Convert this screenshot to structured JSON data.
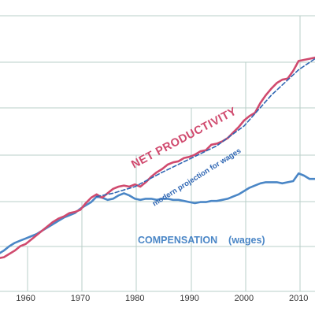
{
  "chart_data": {
    "type": "line",
    "x_ticks": [
      "1960",
      "1970",
      "1980",
      "1990",
      "2000",
      "2010"
    ],
    "xlim": [
      1955,
      2013
    ],
    "ylim": [
      0,
      250
    ],
    "colors": {
      "productivity": "#d04a6e",
      "compensation": "#4a86c6",
      "projection": "#2f66b3",
      "grid": "#b9cfc9"
    },
    "series": [
      {
        "name": "NET  PRODUCTIVITY",
        "key": "productivity",
        "x": [
          1955,
          1956,
          1957,
          1958,
          1959,
          1960,
          1961,
          1962,
          1963,
          1964,
          1965,
          1966,
          1967,
          1968,
          1969,
          1970,
          1971,
          1972,
          1973,
          1974,
          1975,
          1976,
          1977,
          1978,
          1979,
          1980,
          1981,
          1982,
          1983,
          1984,
          1985,
          1986,
          1987,
          1988,
          1989,
          1990,
          1991,
          1992,
          1993,
          1994,
          1995,
          1996,
          1997,
          1998,
          1999,
          2000,
          2001,
          2002,
          2003,
          2004,
          2005,
          2006,
          2007,
          2008,
          2009,
          2010,
          2011,
          2012,
          2013
        ],
        "y": [
          30,
          31,
          34,
          37,
          41,
          43,
          47,
          51,
          55,
          59,
          63,
          66,
          68,
          71,
          72,
          74,
          80,
          85,
          88,
          85,
          89,
          93,
          95,
          96,
          95,
          97,
          95,
          99,
          104,
          108,
          111,
          115,
          117,
          118,
          121,
          122,
          124,
          127,
          128,
          133,
          134,
          136,
          139,
          144,
          149,
          155,
          159,
          162,
          171,
          178,
          184,
          189,
          192,
          193,
          200,
          209,
          210,
          211,
          212
        ]
      },
      {
        "name": "modern projection for wages",
        "key": "projection",
        "x": [
          1973,
          1976,
          1980,
          1985,
          1990,
          1995,
          2000,
          2005,
          2010,
          2013
        ],
        "y": [
          86,
          89,
          95,
          108,
          120,
          132,
          150,
          178,
          201,
          211
        ]
      },
      {
        "name": "COMPENSATION    (wages)",
        "key": "compensation",
        "x": [
          1955,
          1956,
          1957,
          1958,
          1959,
          1960,
          1961,
          1962,
          1963,
          1964,
          1965,
          1966,
          1967,
          1968,
          1969,
          1970,
          1971,
          1972,
          1973,
          1974,
          1975,
          1976,
          1977,
          1978,
          1979,
          1980,
          1981,
          1982,
          1983,
          1984,
          1985,
          1986,
          1987,
          1988,
          1989,
          1990,
          1991,
          1992,
          1993,
          1994,
          1995,
          1996,
          1997,
          1998,
          1999,
          2000,
          2001,
          2002,
          2003,
          2004,
          2005,
          2006,
          2007,
          2008,
          2009,
          2010,
          2011,
          2012,
          2013
        ],
        "y": [
          34,
          37,
          41,
          44,
          46,
          48,
          50,
          52,
          55,
          58,
          61,
          64,
          67,
          69,
          71,
          75,
          78,
          81,
          86,
          85,
          83,
          84,
          87,
          89,
          87,
          84,
          83,
          84,
          84,
          83,
          84,
          84,
          83,
          83,
          82,
          81,
          80,
          81,
          81,
          82,
          82,
          83,
          84,
          86,
          88,
          91,
          94,
          96,
          98,
          99,
          99,
          99,
          98,
          99,
          100,
          107,
          105,
          102,
          102
        ]
      }
    ],
    "annotations": [
      "NET  PRODUCTIVITY",
      "modern projection for wages",
      "COMPENSATION    (wages)"
    ]
  }
}
